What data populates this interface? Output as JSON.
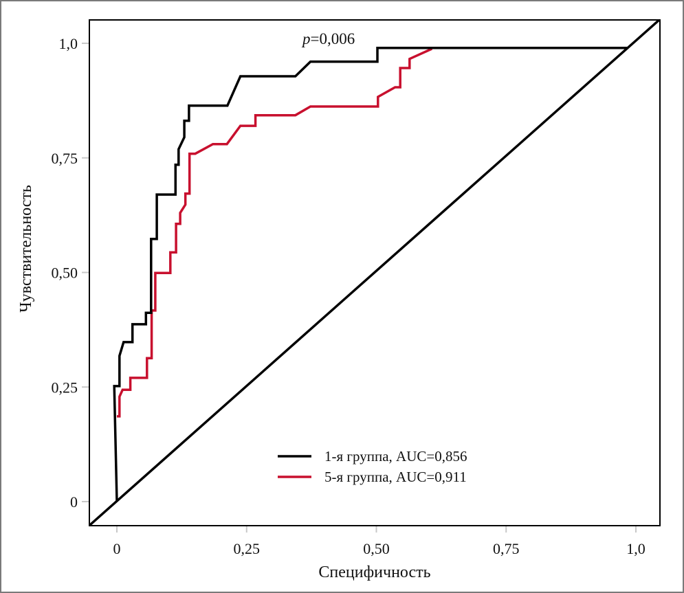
{
  "chart_data": {
    "type": "line",
    "title": "",
    "xlabel": "Специфичность",
    "ylabel": "Чувствительность",
    "xlim": [
      -0.053,
      1.046
    ],
    "ylim": [
      -0.052,
      1.052
    ],
    "x_ticks": [
      0,
      0.25,
      0.5,
      0.75,
      1.0
    ],
    "x_tick_labels": [
      "0",
      "0,25",
      "0,50",
      "0,75",
      "1,0"
    ],
    "y_ticks": [
      0,
      0.25,
      0.5,
      0.75,
      1.0
    ],
    "y_tick_labels": [
      "0",
      "0,25",
      "0,50",
      "0,75",
      "1,0"
    ],
    "grid": false,
    "legend_position": "bottom-center",
    "annotations": [
      {
        "text_italic": "p",
        "text": "=0,006",
        "x": 0.355,
        "y": 1.0
      }
    ],
    "reference_line": {
      "name": "diagonal",
      "color": "#000000",
      "from": [
        -0.053,
        -0.052
      ],
      "to": [
        1.046,
        1.052
      ]
    },
    "series": [
      {
        "name": "1-я группа, AUC=0,856",
        "color": "#000000",
        "x": [
          0.0,
          -0.005,
          0.005,
          0.005,
          0.013,
          0.03,
          0.03,
          0.056,
          0.056,
          0.066,
          0.066,
          0.077,
          0.077,
          0.113,
          0.113,
          0.119,
          0.119,
          0.13,
          0.13,
          0.139,
          0.139,
          0.213,
          0.238,
          0.344,
          0.373,
          0.502,
          0.502,
          0.983
        ],
        "y": [
          0.0,
          0.252,
          0.252,
          0.318,
          0.348,
          0.348,
          0.387,
          0.387,
          0.412,
          0.412,
          0.573,
          0.573,
          0.67,
          0.67,
          0.735,
          0.735,
          0.769,
          0.795,
          0.831,
          0.831,
          0.864,
          0.864,
          0.928,
          0.928,
          0.96,
          0.96,
          0.99,
          0.99
        ]
      },
      {
        "name": "5-я группа, AUC=0,911",
        "color": "#C8102E",
        "x": [
          0.0,
          0.005,
          0.005,
          0.011,
          0.026,
          0.026,
          0.058,
          0.058,
          0.067,
          0.067,
          0.074,
          0.074,
          0.103,
          0.103,
          0.114,
          0.114,
          0.122,
          0.122,
          0.132,
          0.132,
          0.14,
          0.14,
          0.151,
          0.185,
          0.212,
          0.238,
          0.267,
          0.267,
          0.344,
          0.373,
          0.503,
          0.503,
          0.536,
          0.546,
          0.546,
          0.564,
          0.564,
          0.607
        ],
        "y": [
          0.186,
          0.186,
          0.229,
          0.244,
          0.244,
          0.27,
          0.27,
          0.313,
          0.313,
          0.417,
          0.417,
          0.499,
          0.499,
          0.544,
          0.544,
          0.606,
          0.606,
          0.63,
          0.648,
          0.672,
          0.672,
          0.759,
          0.759,
          0.78,
          0.78,
          0.82,
          0.82,
          0.843,
          0.843,
          0.862,
          0.862,
          0.883,
          0.904,
          0.904,
          0.946,
          0.946,
          0.966,
          0.988
        ]
      }
    ]
  }
}
